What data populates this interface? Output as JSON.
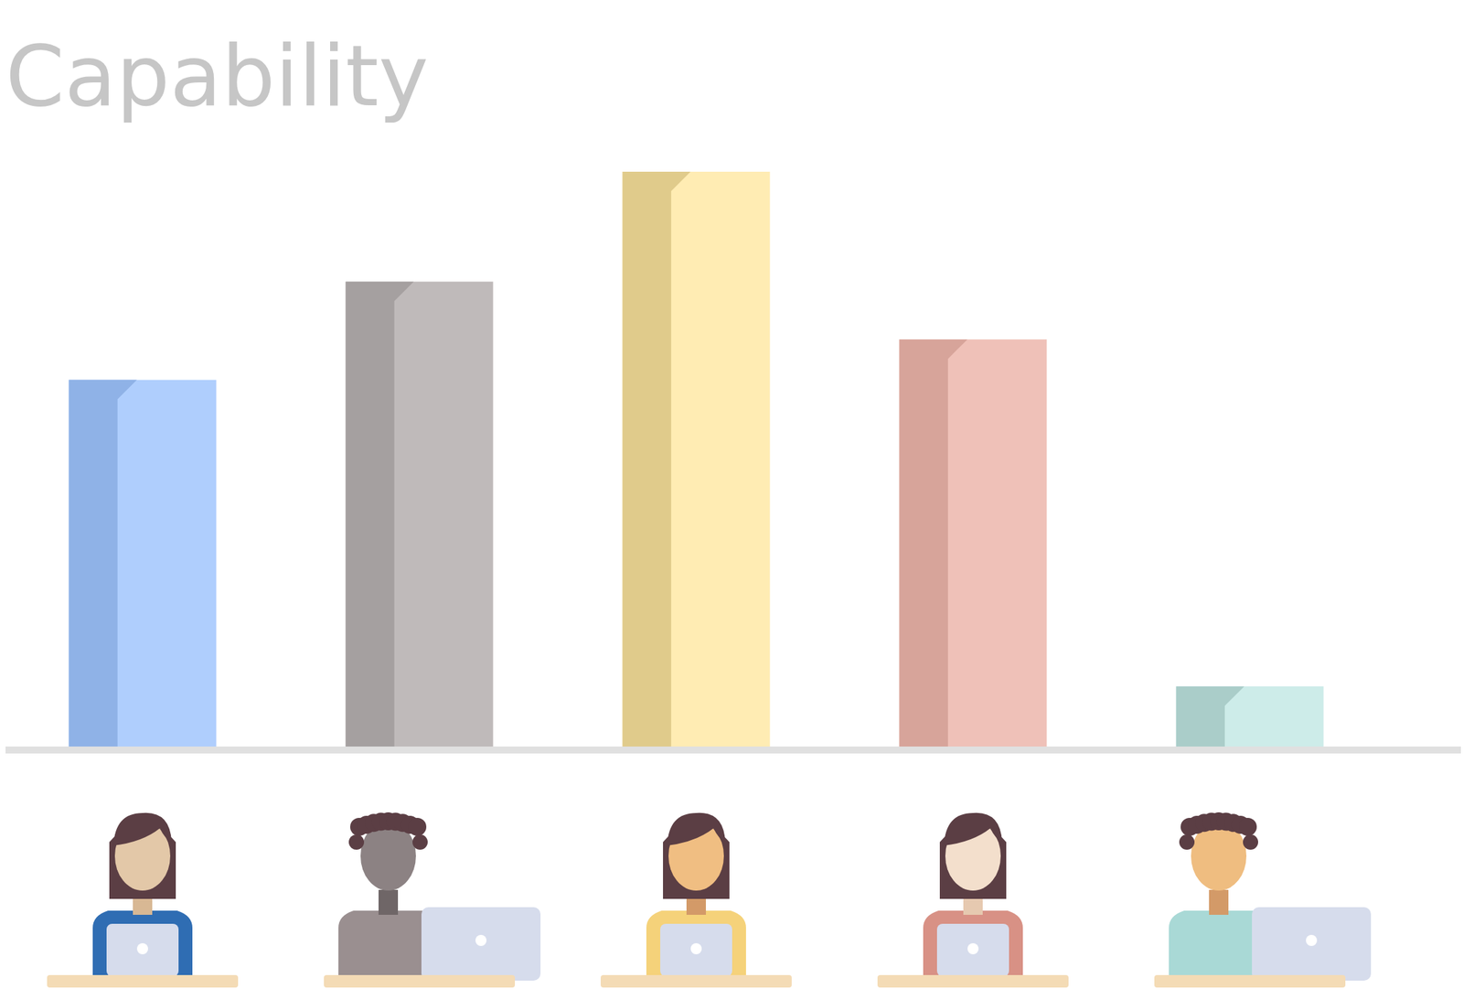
{
  "chart_data": {
    "type": "bar",
    "title": "Capability",
    "categories": [
      null,
      null,
      null,
      null,
      null
    ],
    "values": [
      64,
      81,
      100,
      71,
      11
    ],
    "colors": [
      "#afcefd",
      "#bfbaba",
      "#ffecb3",
      "#efc1b8",
      "#cdece9"
    ],
    "ylim": [
      0,
      100
    ],
    "tick_labels": false,
    "grid": false
  }
}
